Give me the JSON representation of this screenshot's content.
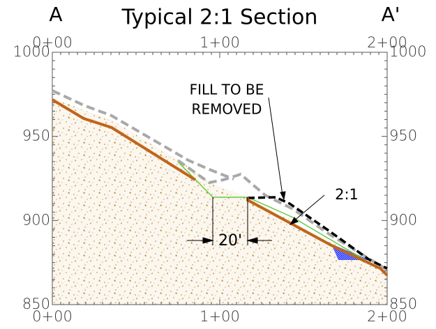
{
  "title": "Typical 2:1 Section",
  "left_label": "A",
  "right_label": "A'",
  "elevation_labels": [
    "1000",
    "950",
    "900",
    "850"
  ],
  "station_labels": [
    "0+00",
    "1+00",
    "2+00"
  ],
  "annotations": {
    "fill": [
      "FILL TO BE",
      "REMOVED"
    ],
    "slope": "2:1",
    "dimension": "20'"
  }
}
